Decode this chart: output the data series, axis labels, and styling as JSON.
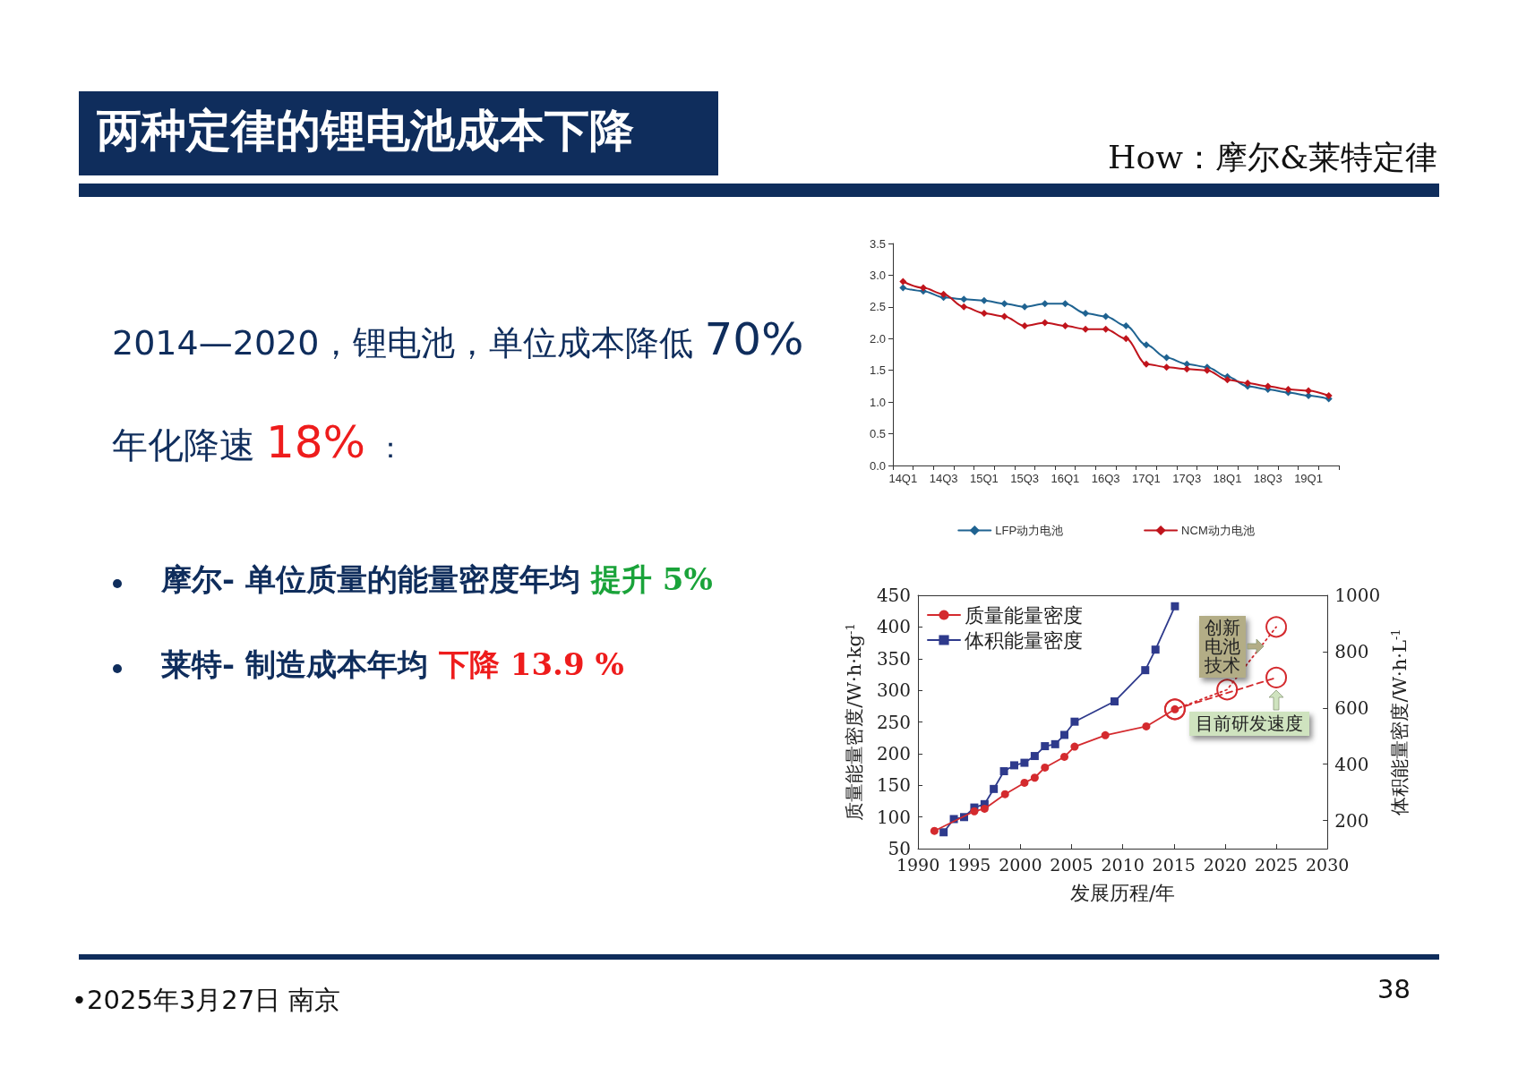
{
  "chart_data": [
    {
      "type": "other",
      "title": "两种定律的锂电池成本下降",
      "subtitle": "How：摩尔&莱特定律",
      "annotations": [
        "2014—2020，锂电池，单位成本降低",
        "70%",
        "年化降速",
        "18%",
        "：",
        "摩尔- 单位质量的能量密度年均",
        "提升 5%",
        "莱特- 制造成本年均",
        "下降 13.9 %",
        "•2025年3月27日 南京",
        "38"
      ]
    },
    {
      "type": "line",
      "categories": [
        "14Q1",
        null,
        "14Q3",
        null,
        "15Q1",
        null,
        "15Q3",
        null,
        "16Q1",
        null,
        "16Q3",
        null,
        "17Q1",
        null,
        "17Q3",
        null,
        "18Q1",
        null,
        "18Q3",
        null,
        "19Q1",
        null
      ],
      "series": [
        {
          "name": "LFP动力电池",
          "color": "#1f6391",
          "values": [
            2.8,
            2.75,
            2.65,
            2.62,
            2.6,
            2.55,
            2.5,
            2.55,
            2.55,
            2.4,
            2.35,
            2.2,
            1.9,
            1.7,
            1.6,
            1.55,
            1.4,
            1.25,
            1.2,
            1.15,
            1.1,
            1.05
          ]
        },
        {
          "name": "NCM动力电池",
          "color": "#c0141c",
          "values": [
            2.9,
            2.8,
            2.7,
            2.5,
            2.4,
            2.35,
            2.2,
            2.25,
            2.2,
            2.15,
            2.15,
            2.0,
            1.6,
            1.55,
            1.52,
            1.5,
            1.35,
            1.3,
            1.25,
            1.2,
            1.18,
            1.1
          ]
        }
      ],
      "ylim": [
        0,
        3.5
      ],
      "yticks": [
        {
          "value": 0,
          "label": "0.0"
        },
        0.5,
        {
          "value": 1,
          "label": "1.0"
        },
        1.5,
        {
          "value": 2,
          "label": "2.0"
        },
        2.5,
        {
          "value": 3,
          "label": "3.0"
        },
        3.5
      ],
      "marker": "diamond",
      "grid": false,
      "legend": "bottom"
    },
    {
      "type": "line",
      "xlabel": "发展历程/年",
      "ylabel": "质量能量密度/W·h·kg$^{-1}$",
      "y2label": "体积能量密度/W·h·L$^{-1}$",
      "series": [
        {
          "name": "质量能量密度",
          "color": "#d42a2e",
          "marker": "circle",
          "x": [
            1991.6,
            1995.5,
            1996.5,
            1998.5,
            2000.4,
            2001.4,
            2002.4,
            2004.3,
            2005.3,
            2008.3,
            2012.3,
            2015.1
          ],
          "values": [
            78,
            109,
            113,
            136,
            154,
            162,
            178,
            195,
            211,
            229,
            243,
            270
          ]
        },
        {
          "name": "体积能量密度",
          "color": "#2e3a8c",
          "marker": "square",
          "axis": "y2",
          "x": [
            1992.5,
            1993.5,
            1994.5,
            1995.5,
            1996.5,
            1997.4,
            1998.4,
            1999.4,
            2000.4,
            2001.4,
            2002.4,
            2003.4,
            2004.3,
            2005.3,
            2009.2,
            2012.2,
            2013.2,
            2015.1
          ],
          "values": [
            158,
            205,
            212,
            246,
            258,
            312,
            375,
            396,
            405,
            429,
            464,
            471,
            504,
            551,
            623,
            734,
            807,
            961
          ]
        },
        {
          "color": "#d42a2e",
          "marker": "circle",
          "line_style": "dashed",
          "x": [
            2015.1,
            2025
          ],
          "values": [
            270,
            320
          ]
        },
        {
          "color": "#d42a2e",
          "marker": "circle",
          "line_style": "dotted",
          "x": [
            2015.1,
            2020.2,
            2025
          ],
          "values": [
            270,
            301,
            400
          ]
        }
      ],
      "annotations": [
        {
          "text": "创新电池技术",
          "x": 2025,
          "y": 400
        },
        {
          "text": "目前研发速度",
          "x": 2025,
          "y": 320
        }
      ],
      "xlim": [
        1990,
        2030
      ],
      "xticks": [
        1990,
        1995,
        2000,
        2005,
        2010,
        2015,
        2020,
        2025,
        2030
      ],
      "ylim": [
        50,
        450
      ],
      "yticks": [
        50,
        100,
        150,
        200,
        250,
        300,
        350,
        400,
        450
      ],
      "y2lim": [
        100,
        1000
      ],
      "y2ticks": [
        200,
        400,
        600,
        800,
        1000
      ],
      "grid": false,
      "legend": "top left"
    }
  ]
}
